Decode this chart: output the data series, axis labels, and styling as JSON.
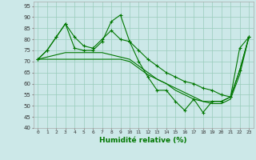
{
  "title": "",
  "xlabel": "Humidité relative (%)",
  "ylabel": "",
  "xlim": [
    -0.5,
    23.5
  ],
  "ylim": [
    40,
    97
  ],
  "yticks": [
    40,
    45,
    50,
    55,
    60,
    65,
    70,
    75,
    80,
    85,
    90,
    95
  ],
  "xticks": [
    0,
    1,
    2,
    3,
    4,
    5,
    6,
    7,
    8,
    9,
    10,
    11,
    12,
    13,
    14,
    15,
    16,
    17,
    18,
    19,
    20,
    21,
    22,
    23
  ],
  "bg_color": "#cce8e8",
  "grid_color": "#99ccbb",
  "line_color": "#007700",
  "line1": [
    71,
    75,
    81,
    87,
    76,
    75,
    75,
    79,
    88,
    91,
    79,
    70,
    63,
    57,
    57,
    52,
    48,
    53,
    47,
    52,
    52,
    54,
    76,
    81
  ],
  "line2": [
    71,
    75,
    81,
    87,
    81,
    77,
    76,
    80,
    84,
    80,
    79,
    75,
    71,
    68,
    65,
    63,
    61,
    60,
    58,
    57,
    55,
    54,
    66,
    81
  ],
  "line3": [
    71,
    72,
    73,
    74,
    74,
    74,
    74,
    74,
    73,
    72,
    71,
    68,
    65,
    62,
    60,
    57,
    55,
    53,
    52,
    52,
    52,
    54,
    66,
    81
  ],
  "line4": [
    71,
    71,
    71,
    71,
    71,
    71,
    71,
    71,
    71,
    71,
    70,
    67,
    64,
    62,
    60,
    58,
    56,
    54,
    52,
    51,
    51,
    53,
    64,
    81
  ]
}
